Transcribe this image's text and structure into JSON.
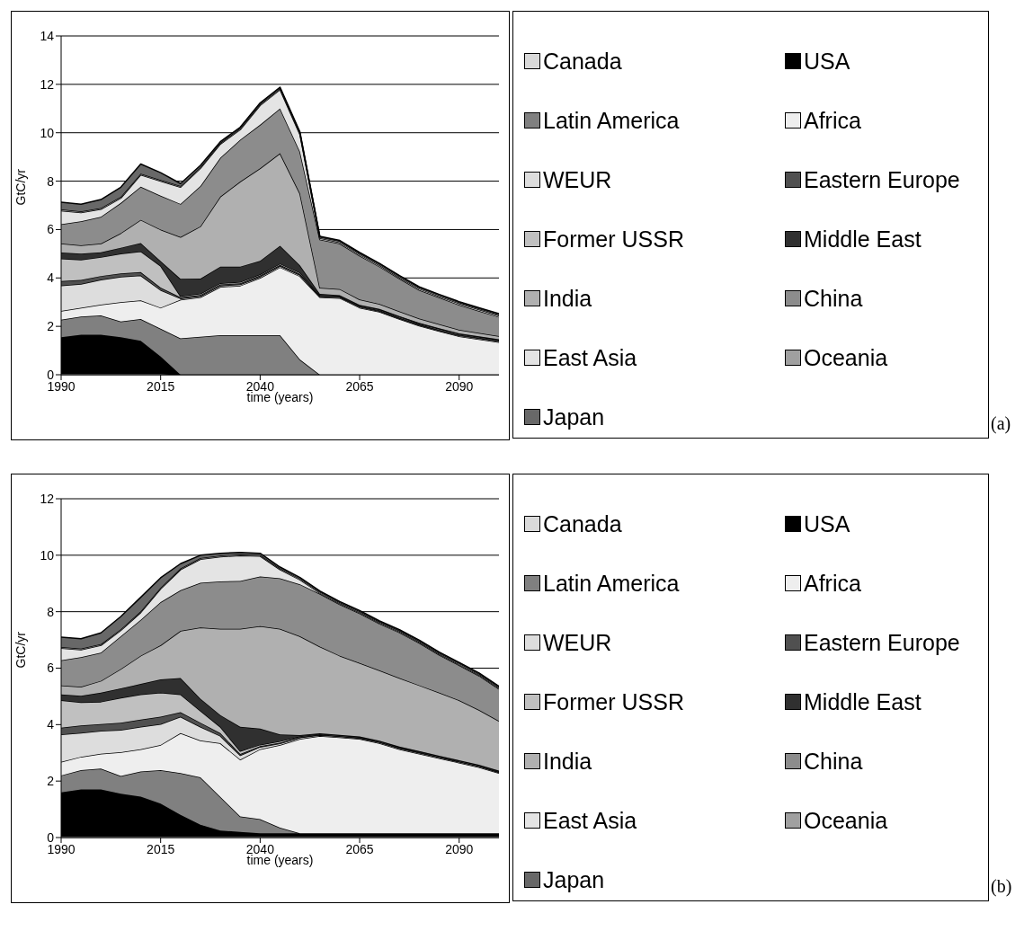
{
  "chart_data": [
    {
      "type": "area",
      "stacked": true,
      "xlabel": "time (years)",
      "ylabel": "GtC/yr",
      "annotations": [
        "(a)"
      ],
      "legend": "right",
      "grid": "y",
      "xlim": [
        1990,
        2100
      ],
      "xticks": [
        1990,
        2015,
        2040,
        2065,
        2090
      ],
      "ylim": [
        0,
        14
      ],
      "yticks": [
        0,
        2,
        4,
        6,
        8,
        10,
        12,
        14
      ],
      "x": [
        1990,
        1995,
        2000,
        2005,
        2010,
        2015,
        2020,
        2025,
        2030,
        2035,
        2040,
        2045,
        2050,
        2055,
        2060,
        2065,
        2070,
        2075,
        2080,
        2085,
        2090,
        2095,
        2100
      ],
      "series": [
        {
          "name": "Canada",
          "color": "#d9d9d9",
          "values": [
            0.05,
            0.05,
            0.05,
            0.05,
            0.05,
            0.05,
            0,
            0,
            0,
            0,
            0,
            0,
            0,
            0,
            0,
            0,
            0,
            0,
            0,
            0,
            0,
            0,
            0
          ]
        },
        {
          "name": "USA",
          "color": "#000000",
          "values": [
            1.5,
            1.6,
            1.6,
            1.5,
            1.35,
            0.7,
            0,
            0,
            0,
            0,
            0,
            0,
            0,
            0,
            0,
            0,
            0,
            0,
            0,
            0,
            0,
            0,
            0
          ]
        },
        {
          "name": "Latin America",
          "color": "#808080",
          "values": [
            0.72,
            0.75,
            0.8,
            0.65,
            0.9,
            1.15,
            1.5,
            1.57,
            1.63,
            1.63,
            1.63,
            1.63,
            0.63,
            0,
            0,
            0,
            0,
            0,
            0,
            0,
            0,
            0,
            0
          ]
        },
        {
          "name": "Africa",
          "color": "#eeeeee",
          "values": [
            0.37,
            0.37,
            0.45,
            0.8,
            0.77,
            0.87,
            1.6,
            1.63,
            2.0,
            2.05,
            2.37,
            2.81,
            3.44,
            3.2,
            3.17,
            2.77,
            2.6,
            2.3,
            2.02,
            1.8,
            1.59,
            1.47,
            1.35
          ]
        },
        {
          "name": "WEUR",
          "color": "#dddddd",
          "values": [
            1.05,
            0.98,
            1.03,
            1.05,
            1.03,
            0.73,
            0.05,
            0.05,
            0.05,
            0.05,
            0.05,
            0.05,
            0.05,
            0.03,
            0.03,
            0.03,
            0.03,
            0.03,
            0.03,
            0.03,
            0.03,
            0.03,
            0.03
          ]
        },
        {
          "name": "Eastern Europe",
          "color": "#505050",
          "values": [
            0.18,
            0.17,
            0.15,
            0.14,
            0.14,
            0.1,
            0.05,
            0.05,
            0.05,
            0.05,
            0.05,
            0.05,
            0.05,
            0.03,
            0.03,
            0.03,
            0.03,
            0.03,
            0.03,
            0.03,
            0.03,
            0.03,
            0.03
          ]
        },
        {
          "name": "Former USSR",
          "color": "#c0c0c0",
          "values": [
            0.93,
            0.83,
            0.78,
            0.81,
            0.86,
            0.9,
            0.05,
            0.05,
            0.05,
            0.05,
            0.05,
            0.05,
            0.05,
            0.03,
            0.03,
            0.03,
            0.03,
            0.03,
            0.03,
            0.03,
            0.03,
            0.03,
            0.03
          ]
        },
        {
          "name": "Middle East",
          "color": "#303030",
          "values": [
            0.25,
            0.25,
            0.2,
            0.25,
            0.34,
            0.2,
            0.71,
            0.62,
            0.69,
            0.64,
            0.56,
            0.74,
            0.3,
            0.05,
            0.03,
            0.03,
            0.03,
            0.03,
            0.03,
            0.03,
            0.03,
            0.03,
            0.03
          ]
        },
        {
          "name": "India",
          "color": "#b0b0b0",
          "values": [
            0.37,
            0.35,
            0.36,
            0.6,
            0.96,
            1.3,
            1.73,
            2.16,
            2.89,
            3.51,
            3.82,
            3.82,
            2.97,
            0.25,
            0.25,
            0.22,
            0.2,
            0.2,
            0.18,
            0.17,
            0.15,
            0.14,
            0.13
          ]
        },
        {
          "name": "China",
          "color": "#8c8c8c",
          "values": [
            0.8,
            0.99,
            1.11,
            1.25,
            1.37,
            1.4,
            1.37,
            1.67,
            1.61,
            1.73,
            1.8,
            1.85,
            1.73,
            2.0,
            1.88,
            1.81,
            1.55,
            1.35,
            1.18,
            1.1,
            1.03,
            0.91,
            0.79
          ]
        },
        {
          "name": "East Asia",
          "color": "#e4e4e4",
          "values": [
            0.56,
            0.36,
            0.31,
            0.2,
            0.49,
            0.6,
            0.69,
            0.73,
            0.56,
            0.42,
            0.8,
            0.78,
            0.71,
            0.05,
            0.05,
            0.05,
            0.05,
            0.05,
            0.05,
            0.05,
            0.05,
            0.05,
            0.05
          ]
        },
        {
          "name": "Oceania",
          "color": "#a0a0a0",
          "values": [
            0.05,
            0.05,
            0.05,
            0.05,
            0.05,
            0.05,
            0.05,
            0.05,
            0.05,
            0.05,
            0.05,
            0.05,
            0.05,
            0.05,
            0.05,
            0.05,
            0.05,
            0.05,
            0.05,
            0.05,
            0.05,
            0.05,
            0.05
          ]
        },
        {
          "name": "Japan",
          "color": "#686868",
          "values": [
            0.3,
            0.3,
            0.35,
            0.4,
            0.4,
            0.3,
            0.1,
            0.07,
            0.05,
            0.05,
            0.05,
            0.05,
            0.05,
            0.03,
            0.03,
            0.03,
            0.03,
            0.03,
            0.03,
            0.03,
            0.03,
            0.03,
            0.03
          ]
        }
      ]
    },
    {
      "type": "area",
      "stacked": true,
      "xlabel": "time (years)",
      "ylabel": "GtC/yr",
      "annotations": [
        "(b)"
      ],
      "legend": "right",
      "grid": "y",
      "xlim": [
        1990,
        2100
      ],
      "xticks": [
        1990,
        2015,
        2040,
        2065,
        2090
      ],
      "ylim": [
        0,
        12
      ],
      "yticks": [
        0,
        2,
        4,
        6,
        8,
        10,
        12
      ],
      "x": [
        1990,
        1995,
        2000,
        2005,
        2010,
        2015,
        2020,
        2025,
        2030,
        2035,
        2040,
        2045,
        2050,
        2055,
        2060,
        2065,
        2070,
        2075,
        2080,
        2085,
        2090,
        2095,
        2100
      ],
      "series": [
        {
          "name": "Canada",
          "color": "#d9d9d9",
          "values": [
            0.05,
            0.05,
            0.05,
            0.05,
            0.05,
            0.05,
            0.05,
            0.05,
            0.05,
            0.05,
            0.05,
            0.05,
            0.05,
            0.05,
            0.05,
            0.05,
            0.05,
            0.05,
            0.05,
            0.05,
            0.05,
            0.05,
            0.05
          ]
        },
        {
          "name": "USA",
          "color": "#000000",
          "values": [
            1.55,
            1.65,
            1.65,
            1.5,
            1.4,
            1.15,
            0.75,
            0.4,
            0.2,
            0.15,
            0.1,
            0.1,
            0.1,
            0.1,
            0.1,
            0.1,
            0.1,
            0.1,
            0.1,
            0.1,
            0.1,
            0.1,
            0.1
          ]
        },
        {
          "name": "Latin America",
          "color": "#808080",
          "values": [
            0.6,
            0.69,
            0.74,
            0.63,
            0.89,
            1.19,
            1.48,
            1.68,
            1.19,
            0.55,
            0.5,
            0.2,
            0,
            0,
            0,
            0,
            0,
            0,
            0,
            0,
            0,
            0,
            0
          ]
        },
        {
          "name": "Africa",
          "color": "#eeeeee",
          "values": [
            0.48,
            0.47,
            0.53,
            0.84,
            0.79,
            0.89,
            1.42,
            1.31,
            1.9,
            2.01,
            2.48,
            2.93,
            3.34,
            3.45,
            3.4,
            3.34,
            3.19,
            2.98,
            2.82,
            2.66,
            2.5,
            2.34,
            2.13
          ]
        },
        {
          "name": "WEUR",
          "color": "#dddddd",
          "values": [
            0.97,
            0.85,
            0.81,
            0.79,
            0.79,
            0.74,
            0.58,
            0.48,
            0.26,
            0.15,
            0.08,
            0.05,
            0.05,
            0.03,
            0.03,
            0.03,
            0.03,
            0.03,
            0.03,
            0.03,
            0.03,
            0.03,
            0.03
          ]
        },
        {
          "name": "Eastern Europe",
          "color": "#505050",
          "values": [
            0.24,
            0.26,
            0.24,
            0.26,
            0.26,
            0.26,
            0.16,
            0.15,
            0.1,
            0.05,
            0.03,
            0.03,
            0.02,
            0.02,
            0.02,
            0.02,
            0.02,
            0.02,
            0.02,
            0.02,
            0.02,
            0.02,
            0.02
          ]
        },
        {
          "name": "Former USSR",
          "color": "#c0c0c0",
          "values": [
            0.97,
            0.82,
            0.79,
            0.88,
            0.89,
            0.85,
            0.63,
            0.42,
            0.22,
            0.1,
            0.05,
            0.05,
            0.02,
            0.02,
            0.02,
            0.02,
            0.02,
            0.02,
            0.02,
            0.02,
            0.02,
            0.02,
            0.02
          ]
        },
        {
          "name": "Middle East",
          "color": "#303030",
          "values": [
            0.21,
            0.23,
            0.32,
            0.33,
            0.37,
            0.47,
            0.58,
            0.43,
            0.42,
            0.86,
            0.57,
            0.24,
            0.05,
            0.02,
            0.02,
            0.02,
            0.02,
            0.02,
            0.02,
            0.02,
            0.02,
            0.02,
            0.02
          ]
        },
        {
          "name": "India",
          "color": "#b0b0b0",
          "values": [
            0.32,
            0.32,
            0.42,
            0.69,
            1.0,
            1.21,
            1.67,
            2.52,
            3.05,
            3.47,
            3.63,
            3.74,
            3.5,
            3.07,
            2.8,
            2.6,
            2.49,
            2.43,
            2.33,
            2.23,
            2.12,
            1.94,
            1.76
          ]
        },
        {
          "name": "China",
          "color": "#8c8c8c",
          "values": [
            0.89,
            1.05,
            1.0,
            1.16,
            1.27,
            1.53,
            1.44,
            1.58,
            1.68,
            1.7,
            1.76,
            1.79,
            1.84,
            1.87,
            1.82,
            1.76,
            1.65,
            1.61,
            1.5,
            1.34,
            1.24,
            1.21,
            1.13
          ]
        },
        {
          "name": "East Asia",
          "color": "#e4e4e4",
          "values": [
            0.43,
            0.26,
            0.26,
            0.21,
            0.26,
            0.47,
            0.73,
            0.84,
            0.88,
            0.9,
            0.72,
            0.31,
            0.16,
            0.03,
            0.03,
            0.03,
            0.03,
            0.03,
            0.03,
            0.03,
            0.03,
            0.03,
            0.03
          ]
        },
        {
          "name": "Oceania",
          "color": "#a0a0a0",
          "values": [
            0.04,
            0.04,
            0.04,
            0.04,
            0.04,
            0.04,
            0.04,
            0.04,
            0.04,
            0.04,
            0.04,
            0.04,
            0.04,
            0.04,
            0.04,
            0.04,
            0.04,
            0.04,
            0.04,
            0.04,
            0.04,
            0.04,
            0.04
          ]
        },
        {
          "name": "Japan",
          "color": "#686868",
          "values": [
            0.35,
            0.35,
            0.4,
            0.45,
            0.5,
            0.35,
            0.17,
            0.1,
            0.08,
            0.07,
            0.06,
            0.05,
            0.04,
            0.03,
            0.03,
            0.03,
            0.03,
            0.03,
            0.03,
            0.03,
            0.03,
            0.03,
            0.03
          ]
        }
      ]
    }
  ]
}
